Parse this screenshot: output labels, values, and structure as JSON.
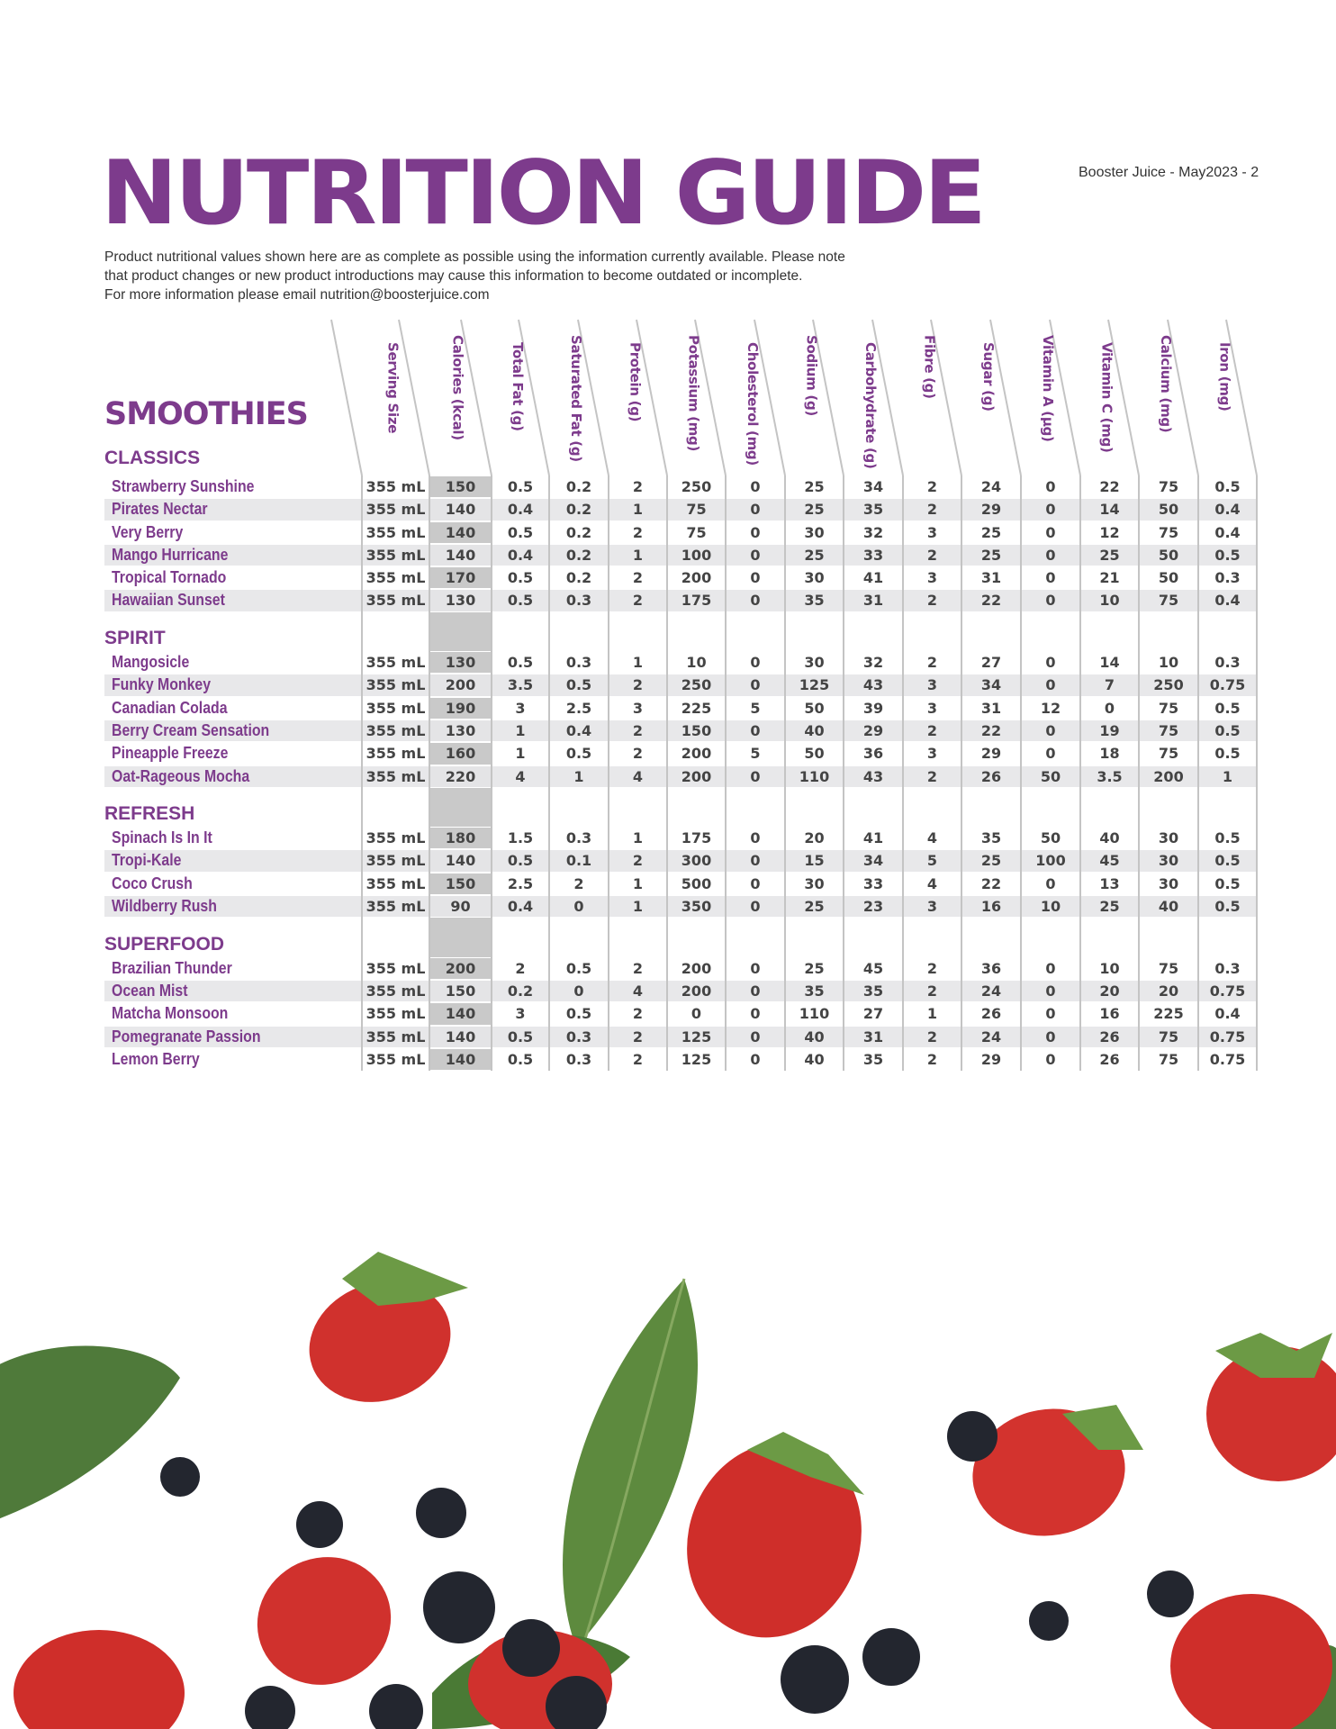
{
  "header": {
    "title": "NUTRITION GUIDE",
    "meta": "Booster Juice - May2023 - 2",
    "intro": [
      "Product nutritional values shown here are as complete as possible using the information currently available. Please note",
      "that product changes or new product introductions may cause this information to become outdated or incomplete.",
      "For more information please email  nutrition@boosterjuice.com"
    ]
  },
  "category": "SMOOTHIES",
  "columns": [
    "Serving Size",
    "Calories (kcal)",
    "Total Fat (g)",
    "Saturated Fat (g)",
    "Protein (g)",
    "Potassium (mg)",
    "Cholesterol (mg)",
    "Sodium (g)",
    "Carbohydrate (g)",
    "Fibre (g)",
    "Sugar (g)",
    "Vitamin A (µg)",
    "Vitamin C (mg)",
    "Calcium (mg)",
    "Iron (mg)"
  ],
  "sections": [
    {
      "label": "CLASSICS",
      "rows": [
        {
          "name": "Strawberry Sunshine",
          "values": [
            "355 mL",
            "150",
            "0.5",
            "0.2",
            "2",
            "250",
            "0",
            "25",
            "34",
            "2",
            "24",
            "0",
            "22",
            "75",
            "0.5"
          ]
        },
        {
          "name": "Pirates Nectar",
          "values": [
            "355 mL",
            "140",
            "0.4",
            "0.2",
            "1",
            "75",
            "0",
            "25",
            "35",
            "2",
            "29",
            "0",
            "14",
            "50",
            "0.4"
          ]
        },
        {
          "name": "Very Berry",
          "values": [
            "355 mL",
            "140",
            "0.5",
            "0.2",
            "2",
            "75",
            "0",
            "30",
            "32",
            "3",
            "25",
            "0",
            "12",
            "75",
            "0.4"
          ]
        },
        {
          "name": "Mango Hurricane",
          "values": [
            "355 mL",
            "140",
            "0.4",
            "0.2",
            "1",
            "100",
            "0",
            "25",
            "33",
            "2",
            "25",
            "0",
            "25",
            "50",
            "0.5"
          ]
        },
        {
          "name": "Tropical Tornado",
          "values": [
            "355 mL",
            "170",
            "0.5",
            "0.2",
            "2",
            "200",
            "0",
            "30",
            "41",
            "3",
            "31",
            "0",
            "21",
            "50",
            "0.3"
          ]
        },
        {
          "name": "Hawaiian Sunset",
          "values": [
            "355 mL",
            "130",
            "0.5",
            "0.3",
            "2",
            "175",
            "0",
            "35",
            "31",
            "2",
            "22",
            "0",
            "10",
            "75",
            "0.4"
          ]
        }
      ]
    },
    {
      "label": "SPIRIT",
      "rows": [
        {
          "name": "Mangosicle",
          "values": [
            "355 mL",
            "130",
            "0.5",
            "0.3",
            "1",
            "10",
            "0",
            "30",
            "32",
            "2",
            "27",
            "0",
            "14",
            "10",
            "0.3"
          ]
        },
        {
          "name": "Funky Monkey",
          "values": [
            "355 mL",
            "200",
            "3.5",
            "0.5",
            "2",
            "250",
            "0",
            "125",
            "43",
            "3",
            "34",
            "0",
            "7",
            "250",
            "0.75"
          ]
        },
        {
          "name": "Canadian Colada",
          "values": [
            "355 mL",
            "190",
            "3",
            "2.5",
            "3",
            "225",
            "5",
            "50",
            "39",
            "3",
            "31",
            "12",
            "0",
            "75",
            "0.5"
          ]
        },
        {
          "name": "Berry Cream Sensation",
          "values": [
            "355 mL",
            "130",
            "1",
            "0.4",
            "2",
            "150",
            "0",
            "40",
            "29",
            "2",
            "22",
            "0",
            "19",
            "75",
            "0.5"
          ]
        },
        {
          "name": "Pineapple Freeze",
          "values": [
            "355 mL",
            "160",
            "1",
            "0.5",
            "2",
            "200",
            "5",
            "50",
            "36",
            "3",
            "29",
            "0",
            "18",
            "75",
            "0.5"
          ]
        },
        {
          "name": "Oat-Rageous Mocha",
          "values": [
            "355 mL",
            "220",
            "4",
            "1",
            "4",
            "200",
            "0",
            "110",
            "43",
            "2",
            "26",
            "50",
            "3.5",
            "200",
            "1"
          ]
        }
      ]
    },
    {
      "label": "REFRESH",
      "rows": [
        {
          "name": "Spinach Is In It",
          "values": [
            "355 mL",
            "180",
            "1.5",
            "0.3",
            "1",
            "175",
            "0",
            "20",
            "41",
            "4",
            "35",
            "50",
            "40",
            "30",
            "0.5"
          ]
        },
        {
          "name": "Tropi-Kale",
          "values": [
            "355 mL",
            "140",
            "0.5",
            "0.1",
            "2",
            "300",
            "0",
            "15",
            "34",
            "5",
            "25",
            "100",
            "45",
            "30",
            "0.5"
          ]
        },
        {
          "name": "Coco Crush",
          "values": [
            "355 mL",
            "150",
            "2.5",
            "2",
            "1",
            "500",
            "0",
            "30",
            "33",
            "4",
            "22",
            "0",
            "13",
            "30",
            "0.5"
          ]
        },
        {
          "name": "Wildberry Rush",
          "values": [
            "355 mL",
            "90",
            "0.4",
            "0",
            "1",
            "350",
            "0",
            "25",
            "23",
            "3",
            "16",
            "10",
            "25",
            "40",
            "0.5"
          ]
        }
      ]
    },
    {
      "label": "SUPERFOOD",
      "rows": [
        {
          "name": "Brazilian Thunder",
          "values": [
            "355 mL",
            "200",
            "2",
            "0.5",
            "2",
            "200",
            "0",
            "25",
            "45",
            "2",
            "36",
            "0",
            "10",
            "75",
            "0.3"
          ]
        },
        {
          "name": "Ocean Mist",
          "values": [
            "355 mL",
            "150",
            "0.2",
            "0",
            "4",
            "200",
            "0",
            "35",
            "35",
            "2",
            "24",
            "0",
            "20",
            "20",
            "0.75"
          ]
        },
        {
          "name": "Matcha Monsoon",
          "values": [
            "355 mL",
            "140",
            "3",
            "0.5",
            "2",
            "0",
            "0",
            "110",
            "27",
            "1",
            "26",
            "0",
            "16",
            "225",
            "0.4"
          ]
        },
        {
          "name": "Pomegranate Passion",
          "values": [
            "355 mL",
            "140",
            "0.5",
            "0.3",
            "2",
            "125",
            "0",
            "40",
            "31",
            "2",
            "24",
            "0",
            "26",
            "75",
            "0.75"
          ]
        },
        {
          "name": "Lemon Berry",
          "values": [
            "355 mL",
            "140",
            "0.5",
            "0.3",
            "2",
            "125",
            "0",
            "40",
            "35",
            "2",
            "29",
            "0",
            "26",
            "75",
            "0.75"
          ]
        }
      ]
    }
  ],
  "colors": {
    "brand_purple": "#7d3b8c",
    "stripe": "#e8e8ea",
    "calories_shade": "#c9c9c9",
    "text": "#444444"
  },
  "image": "strawberries-blueberries-basil-photo"
}
